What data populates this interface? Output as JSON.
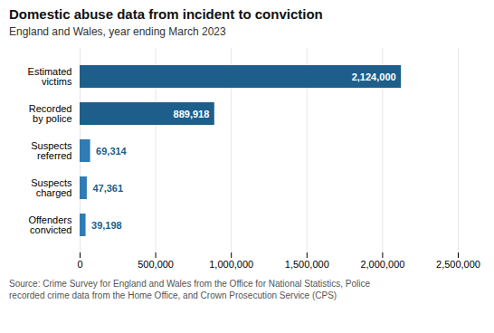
{
  "chart_data": {
    "type": "bar",
    "orientation": "horizontal",
    "title": "Domestic abuse data from incident to conviction",
    "subtitle": "England and Wales, year ending March 2023",
    "source": "Source: Crime Survey for England and Wales from the Office for National Statistics, Police\nrecorded crime data from the Home Office, and Crown Prosecution Service (CPS)",
    "categories": [
      "Estimated\nvictims",
      "Recorded\nby police",
      "Suspects\nreferred",
      "Suspects\ncharged",
      "Offenders\nconvicted"
    ],
    "values": [
      2124000,
      889918,
      69314,
      47361,
      39198
    ],
    "value_labels": [
      "2,124,000",
      "889,918",
      "69,314",
      "47,361",
      "39,198"
    ],
    "data_labels": true,
    "colors": [
      "#1d5f8a",
      "#1d5f8a",
      "#2e7bb5",
      "#2e7bb5",
      "#2e7bb5"
    ],
    "xlim": [
      0,
      2500000
    ],
    "xticks": [
      0,
      {
        "value": 500000,
        "label": "500,000"
      },
      {
        "value": 1000000,
        "label": "1,000,000"
      },
      {
        "value": 1500000,
        "label": "1,500,000"
      },
      {
        "value": 2000000,
        "label": "2,000,000"
      },
      {
        "value": 2500000,
        "label": "2,500,000"
      }
    ],
    "grid": true
  }
}
